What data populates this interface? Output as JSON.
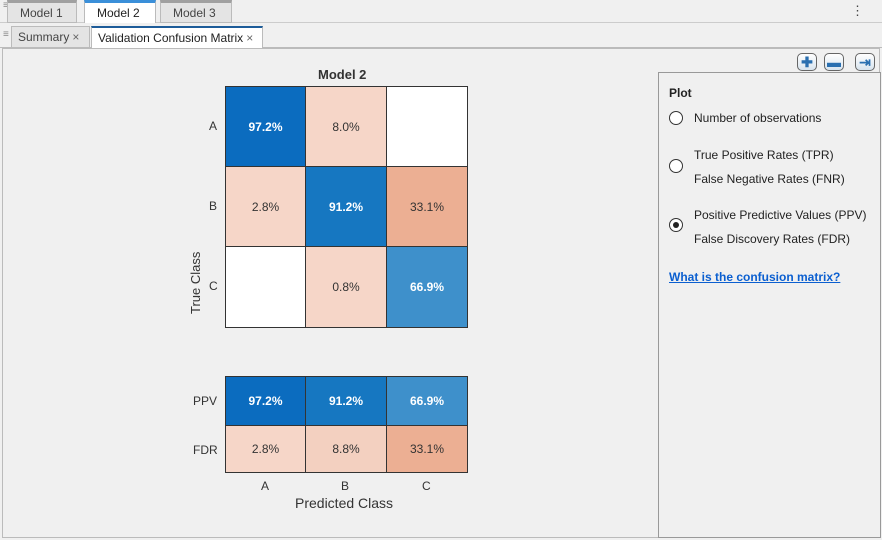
{
  "model_tabs": [
    {
      "label": "Model 1"
    },
    {
      "label": "Model 2",
      "active": true
    },
    {
      "label": "Model 3"
    }
  ],
  "doc_tabs": [
    {
      "label": "Summary"
    },
    {
      "label": "Validation Confusion Matrix",
      "active": true
    }
  ],
  "toolbar": {
    "zoom_in": "zoom-in",
    "zoom_out": "zoom-out",
    "dock": "dock-panel"
  },
  "plot": {
    "title": "Model 2",
    "ylabel": "True Class",
    "xlabel": "Predicted Class",
    "classes": [
      "A",
      "B",
      "C"
    ],
    "matrix": [
      [
        "97.2%",
        "8.0%",
        ""
      ],
      [
        "2.8%",
        "91.2%",
        "33.1%"
      ],
      [
        "",
        "0.8%",
        "66.9%"
      ]
    ],
    "matrix_colors": [
      [
        "#0b6cbf",
        "#f6d6c8",
        "#ffffff"
      ],
      [
        "#f6d6c8",
        "#1677c1",
        "#ecaf93"
      ],
      [
        "#ffffff",
        "#f6d6c8",
        "#3e90cb"
      ]
    ],
    "summary_labels": [
      "PPV",
      "FDR"
    ],
    "summary": [
      [
        "97.2%",
        "91.2%",
        "66.9%"
      ],
      [
        "2.8%",
        "8.8%",
        "33.1%"
      ]
    ],
    "summary_colors": [
      [
        "#0b6cbf",
        "#1677c1",
        "#3e90cb"
      ],
      [
        "#f6d6c8",
        "#f3d0c0",
        "#ecaf93"
      ]
    ]
  },
  "panel": {
    "heading": "Plot",
    "options": [
      {
        "label": "Number of observations"
      },
      {
        "label": "True Positive Rates (TPR)",
        "label2": "False Negative Rates (FNR)"
      },
      {
        "label": "Positive Predictive Values (PPV)",
        "label2": "False Discovery Rates (FDR)",
        "selected": true
      }
    ],
    "link": "What is the confusion matrix?"
  }
}
